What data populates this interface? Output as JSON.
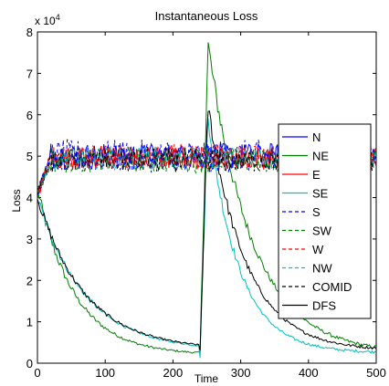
{
  "chart_data": {
    "type": "line",
    "title": "Instantaneous Loss",
    "xlabel": "Time",
    "ylabel": "Loss",
    "y_multiplier": "x 10",
    "y_multiplier_exp": "4",
    "xlim": [
      0,
      500
    ],
    "ylim": [
      0,
      8
    ],
    "xticks": [
      0,
      100,
      200,
      300,
      400,
      500
    ],
    "yticks": [
      0,
      1,
      2,
      3,
      4,
      5,
      6,
      7,
      8
    ],
    "legend_position": "right",
    "series": [
      {
        "name": "N",
        "color": "#0000ff",
        "dash": "solid",
        "kind": "noise",
        "base": 5.0,
        "amp": 0.32
      },
      {
        "name": "NE",
        "color": "#008000",
        "dash": "solid",
        "kind": "decay",
        "start": 4.2,
        "floor1": 0.2,
        "tau1": 55,
        "jump_t": 240,
        "peak": 7.9,
        "floor2": 0.22,
        "tau2": 65,
        "noise": 0.28
      },
      {
        "name": "E",
        "color": "#ff0000",
        "dash": "solid",
        "kind": "noise",
        "base": 4.95,
        "amp": 0.28
      },
      {
        "name": "SE",
        "color": "#00bfbf",
        "dash": "solid",
        "kind": "decay",
        "start": 4.0,
        "floor1": 0.3,
        "tau1": 70,
        "jump_t": 240,
        "peak": 6.2,
        "floor2": 0.25,
        "tau2": 45,
        "noise": 0.22
      },
      {
        "name": "S",
        "color": "#0000ff",
        "dash": "dashed",
        "kind": "noise",
        "base": 5.0,
        "amp": 0.4
      },
      {
        "name": "SW",
        "color": "#008000",
        "dash": "dashed",
        "kind": "noise",
        "base": 4.9,
        "amp": 0.3
      },
      {
        "name": "W",
        "color": "#ff0000",
        "dash": "dashed",
        "kind": "noise",
        "base": 5.0,
        "amp": 0.3
      },
      {
        "name": "NW",
        "color": "#00bfbf",
        "dash": "dashed",
        "kind": "noise",
        "base": 4.95,
        "amp": 0.28
      },
      {
        "name": "COMID",
        "color": "#000000",
        "dash": "dashed",
        "kind": "noise",
        "base": 4.9,
        "amp": 0.3
      },
      {
        "name": "DFS",
        "color": "#000000",
        "dash": "solid",
        "kind": "decay",
        "start": 4.0,
        "floor1": 0.32,
        "tau1": 70,
        "jump_t": 240,
        "peak": 6.4,
        "floor2": 0.3,
        "tau2": 55,
        "noise": 0.22
      }
    ]
  }
}
